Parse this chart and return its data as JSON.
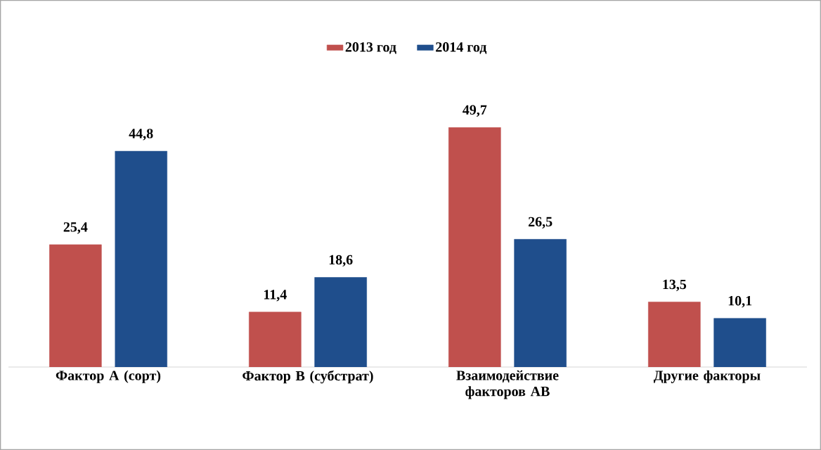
{
  "chart_data": {
    "type": "bar",
    "categories": [
      "Фактор А (сорт)",
      "Фактор В (субстрат)",
      "Взаимодействие факторов АВ",
      "Другие факторы"
    ],
    "series": [
      {
        "name": "2013 год",
        "color": "#c0504d",
        "values": [
          25.4,
          11.4,
          49.7,
          13.5
        ],
        "value_labels": [
          "25,4",
          "11,4",
          "49,7",
          "13,5"
        ]
      },
      {
        "name": "2014 год",
        "color": "#1f4e8c",
        "values": [
          44.8,
          18.6,
          26.5,
          10.1
        ],
        "value_labels": [
          "44,8",
          "18,6",
          "26,5",
          "10,1"
        ]
      }
    ],
    "legend": "top"
  }
}
